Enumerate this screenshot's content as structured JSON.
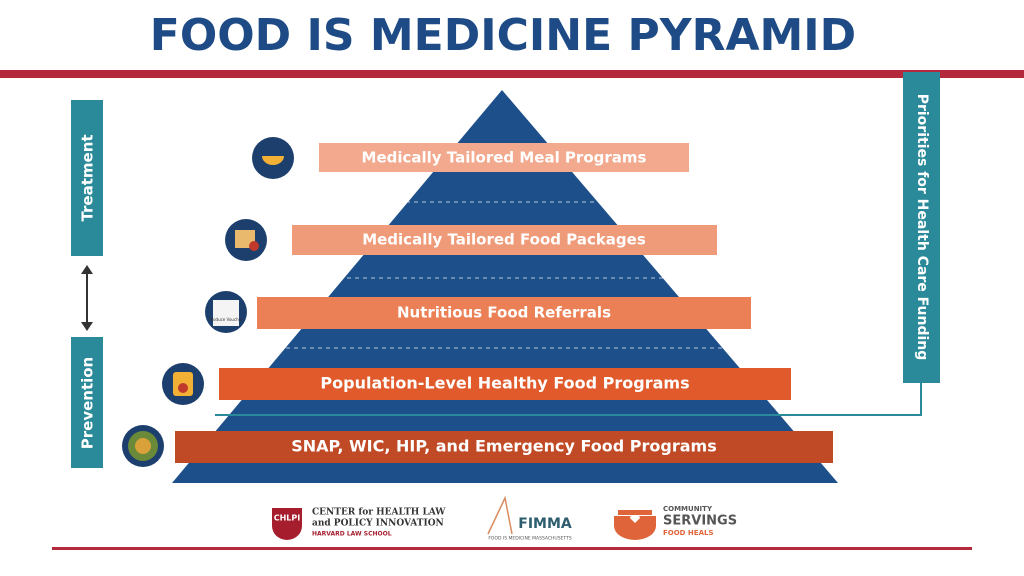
{
  "title": "FOOD IS MEDICINE PYRAMID",
  "tiers": [
    {
      "label": "Medically Tailored Meal Programs"
    },
    {
      "label": "Medically Tailored Food Packages"
    },
    {
      "label": "Nutritious Food Referrals",
      "icon_text": "Produce Voucher"
    },
    {
      "label": "Population-Level Healthy Food Programs"
    },
    {
      "label": "SNAP, WIC, HIP, and Emergency Food Programs"
    }
  ],
  "left_labels": {
    "top": "Treatment",
    "bottom": "Prevention"
  },
  "right_label": "Priorities for Health Care Funding",
  "logos": [
    {
      "mark": "CHLPI",
      "line1": "CENTER for HEALTH LAW",
      "line2": "and POLICY INNOVATION",
      "line3": "HARVARD LAW SCHOOL"
    },
    {
      "mark": "FIMMA",
      "line1": "FOOD IS MEDICINE MASSACHUSETTS"
    },
    {
      "line1": "COMMUNITY",
      "mark": "SERVINGS",
      "line2": "FOOD HEALS"
    }
  ]
}
